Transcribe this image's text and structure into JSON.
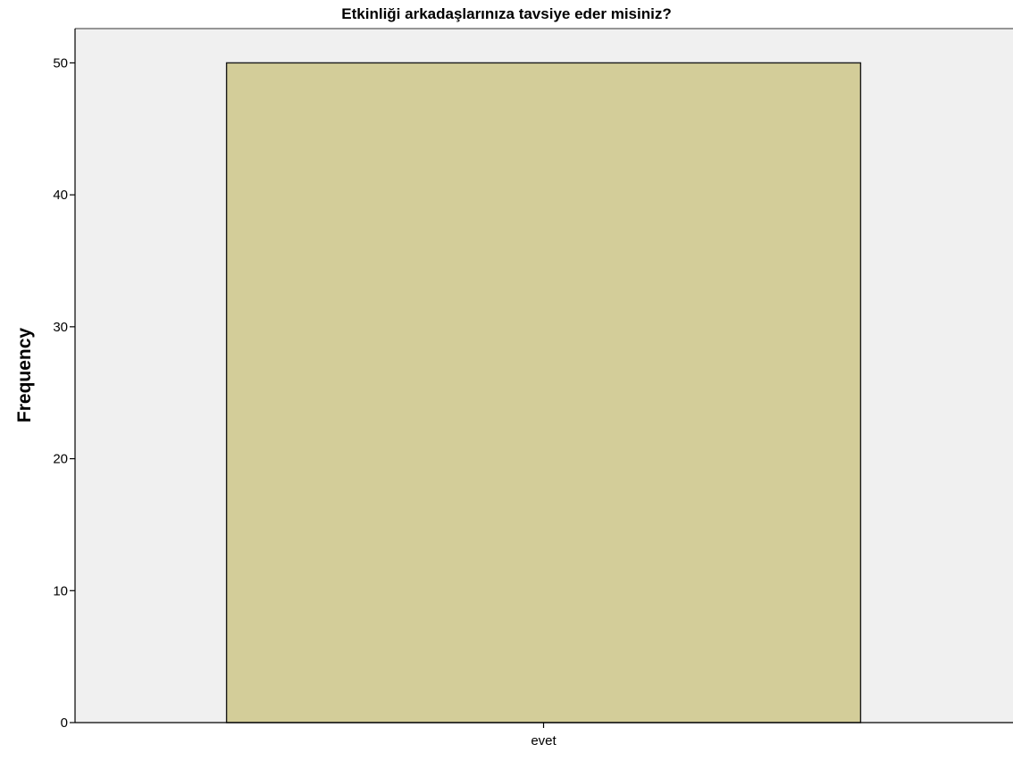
{
  "chart_data": {
    "type": "bar",
    "title": "Etkinliği arkadaşlarınıza tavsiye eder misiniz?",
    "xlabel": "",
    "ylabel": "Frequency",
    "categories": [
      "evet"
    ],
    "values": [
      50
    ],
    "ylim": [
      0,
      52.6
    ],
    "yticks": [
      0,
      10,
      20,
      30,
      40,
      50
    ],
    "grid": false,
    "legend": "none",
    "colors": {
      "plot_background": "#f0f0f0",
      "bar_fill": "#d3cd99",
      "bar_stroke": "#1a1a1a",
      "axis": "#000000"
    }
  }
}
